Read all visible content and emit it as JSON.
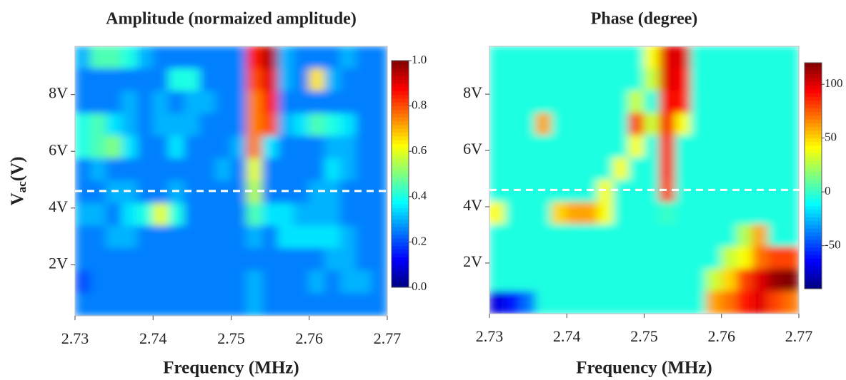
{
  "chart_data": [
    {
      "type": "heatmap",
      "title": "Amplitude (normaized amplitude)",
      "x_label": "Frequency (MHz)",
      "y_label": "V",
      "y_label_sub": "ac",
      "y_label_unit": "(V)",
      "xlim": [
        2.73,
        2.77
      ],
      "xticks": [
        2.73,
        2.74,
        2.75,
        2.76,
        2.77
      ],
      "ylim": [
        0.2,
        9.7
      ],
      "yticks": [
        {
          "value": 2,
          "label": "2V"
        },
        {
          "value": 4,
          "label": "4V"
        },
        {
          "value": 6,
          "label": "6V"
        },
        {
          "value": 8,
          "label": "8V"
        }
      ],
      "clim": [
        0,
        1
      ],
      "cticks": [
        {
          "value": 0,
          "label": "0.0"
        },
        0.2,
        0.4,
        0.6,
        0.8,
        {
          "value": 1,
          "label": "1.0"
        }
      ],
      "colormap": "jet",
      "dashed_line_y": 4.6,
      "z": [
        [
          0.3,
          0.45,
          0.45,
          0.4,
          0.3,
          0.25,
          0.25,
          0.25,
          0.25,
          0.25,
          0.25,
          0.85,
          0.95,
          0.3,
          0.25,
          0.25,
          0.25,
          0.3,
          0.25,
          0.25
        ],
        [
          0.25,
          0.25,
          0.25,
          0.25,
          0.25,
          0.25,
          0.4,
          0.4,
          0.25,
          0.25,
          0.25,
          0.8,
          0.9,
          0.3,
          0.25,
          0.65,
          0.3,
          0.25,
          0.25,
          0.25
        ],
        [
          0.25,
          0.25,
          0.25,
          0.3,
          0.25,
          0.3,
          0.25,
          0.3,
          0.3,
          0.25,
          0.25,
          0.75,
          0.85,
          0.25,
          0.25,
          0.25,
          0.25,
          0.25,
          0.25,
          0.25
        ],
        [
          0.4,
          0.45,
          0.35,
          0.3,
          0.25,
          0.3,
          0.3,
          0.3,
          0.25,
          0.25,
          0.25,
          0.75,
          0.8,
          0.3,
          0.35,
          0.45,
          0.4,
          0.35,
          0.25,
          0.25
        ],
        [
          0.4,
          0.45,
          0.5,
          0.35,
          0.25,
          0.25,
          0.35,
          0.25,
          0.25,
          0.25,
          0.3,
          0.75,
          0.35,
          0.25,
          0.25,
          0.25,
          0.3,
          0.3,
          0.25,
          0.25
        ],
        [
          0.25,
          0.3,
          0.25,
          0.25,
          0.25,
          0.25,
          0.25,
          0.25,
          0.25,
          0.3,
          0.25,
          0.6,
          0.25,
          0.25,
          0.25,
          0.25,
          0.35,
          0.3,
          0.25,
          0.25
        ],
        [
          0.25,
          0.25,
          0.3,
          0.3,
          0.25,
          0.25,
          0.3,
          0.25,
          0.25,
          0.25,
          0.25,
          0.55,
          0.25,
          0.25,
          0.25,
          0.3,
          0.3,
          0.25,
          0.25,
          0.25
        ],
        [
          0.3,
          0.3,
          0.25,
          0.35,
          0.4,
          0.6,
          0.4,
          0.25,
          0.25,
          0.25,
          0.25,
          0.45,
          0.35,
          0.35,
          0.3,
          0.3,
          0.3,
          0.25,
          0.25,
          0.25
        ],
        [
          0.25,
          0.25,
          0.3,
          0.3,
          0.25,
          0.25,
          0.25,
          0.25,
          0.25,
          0.25,
          0.25,
          0.3,
          0.25,
          0.35,
          0.35,
          0.35,
          0.35,
          0.3,
          0.25,
          0.25
        ],
        [
          0.25,
          0.25,
          0.25,
          0.25,
          0.25,
          0.25,
          0.25,
          0.25,
          0.25,
          0.25,
          0.25,
          0.25,
          0.25,
          0.25,
          0.25,
          0.25,
          0.3,
          0.3,
          0.25,
          0.25
        ],
        [
          0.2,
          0.25,
          0.25,
          0.25,
          0.25,
          0.25,
          0.25,
          0.25,
          0.25,
          0.25,
          0.25,
          0.3,
          0.25,
          0.25,
          0.25,
          0.3,
          0.25,
          0.3,
          0.3,
          0.25
        ],
        [
          0.25,
          0.25,
          0.25,
          0.25,
          0.25,
          0.25,
          0.25,
          0.25,
          0.25,
          0.25,
          0.25,
          0.3,
          0.25,
          0.25,
          0.25,
          0.25,
          0.25,
          0.25,
          0.25,
          0.25
        ]
      ]
    },
    {
      "type": "heatmap",
      "title": "Phase (degree)",
      "x_label": "Frequency (MHz)",
      "xlim": [
        2.73,
        2.77
      ],
      "xticks": [
        2.73,
        2.74,
        2.75,
        2.76,
        2.77
      ],
      "ylim": [
        0.2,
        9.7
      ],
      "yticks": [
        {
          "value": 2,
          "label": "2V"
        },
        {
          "value": 4,
          "label": "4V"
        },
        {
          "value": 6,
          "label": "6V"
        },
        {
          "value": 8,
          "label": "8V"
        }
      ],
      "clim": [
        -90,
        120
      ],
      "cticks": [
        -50,
        0,
        50,
        100
      ],
      "colormap": "jet",
      "dashed_line_y": 4.6,
      "z": [
        [
          -5,
          -5,
          -5,
          -5,
          -5,
          -5,
          -5,
          -5,
          -5,
          -5,
          40,
          100,
          100,
          -5,
          -5,
          -5,
          -5,
          -5,
          -5,
          -5
        ],
        [
          -5,
          -5,
          -5,
          -5,
          -5,
          -5,
          -5,
          -5,
          -5,
          -5,
          30,
          100,
          95,
          -5,
          -5,
          -5,
          -5,
          -5,
          -5,
          -5
        ],
        [
          -5,
          -5,
          -5,
          -5,
          -5,
          -5,
          -5,
          -5,
          -5,
          30,
          -5,
          95,
          90,
          -5,
          -5,
          -5,
          -5,
          -5,
          -5,
          -5
        ],
        [
          -5,
          -5,
          -5,
          60,
          -5,
          -5,
          -5,
          -5,
          -5,
          80,
          30,
          95,
          40,
          -5,
          -5,
          -5,
          -5,
          -5,
          -5,
          -5
        ],
        [
          -5,
          -5,
          -5,
          -5,
          -5,
          -5,
          -5,
          -5,
          -5,
          40,
          -5,
          90,
          -5,
          -5,
          -5,
          -5,
          -5,
          -5,
          -5,
          -5
        ],
        [
          -5,
          -5,
          -5,
          -5,
          -5,
          -5,
          -5,
          -5,
          40,
          -5,
          -5,
          90,
          -5,
          -5,
          -5,
          -5,
          -5,
          -5,
          -5,
          -5
        ],
        [
          -5,
          -5,
          -5,
          -5,
          -5,
          -5,
          -5,
          40,
          -5,
          -5,
          -5,
          80,
          -5,
          -5,
          -5,
          -5,
          -5,
          -5,
          -5,
          -5
        ],
        [
          40,
          -5,
          -5,
          -5,
          50,
          60,
          60,
          40,
          -5,
          -5,
          -5,
          0,
          -5,
          -5,
          -5,
          -5,
          -5,
          -5,
          -5,
          -5
        ],
        [
          -5,
          -5,
          -5,
          -5,
          -5,
          -5,
          -5,
          -5,
          -5,
          -5,
          -5,
          -5,
          -5,
          -5,
          -5,
          -5,
          25,
          60,
          -5,
          -5
        ],
        [
          -5,
          -5,
          -5,
          -5,
          -5,
          -5,
          -5,
          -5,
          -5,
          -5,
          -5,
          -5,
          -5,
          -5,
          -5,
          30,
          40,
          70,
          80,
          80
        ],
        [
          -5,
          -5,
          -5,
          -5,
          -5,
          -5,
          -5,
          -5,
          -5,
          -5,
          -5,
          -5,
          -5,
          -5,
          30,
          50,
          80,
          100,
          115,
          120
        ],
        [
          -70,
          -60,
          -40,
          -5,
          -5,
          -5,
          -5,
          -5,
          -5,
          -5,
          -5,
          -5,
          -5,
          -5,
          60,
          70,
          90,
          100,
          80,
          70
        ]
      ]
    }
  ]
}
